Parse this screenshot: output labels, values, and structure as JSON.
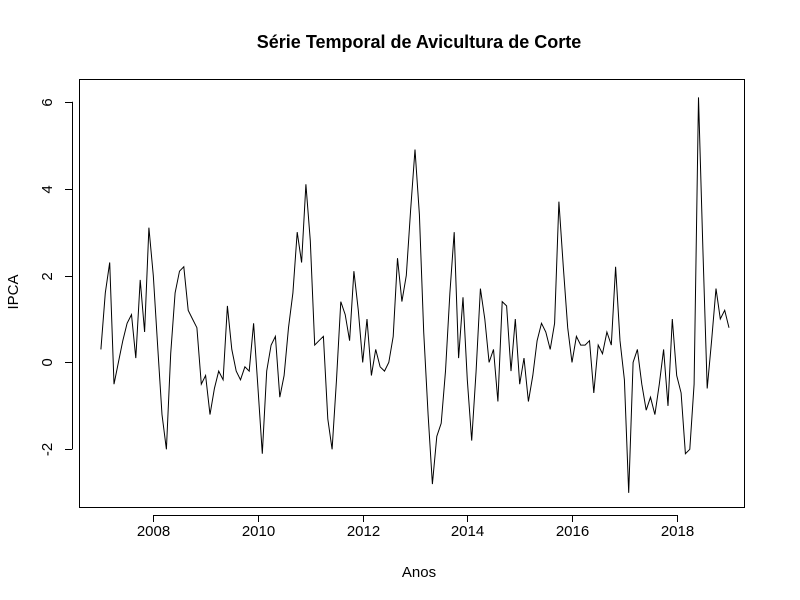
{
  "chart_data": {
    "type": "line",
    "title": "Série Temporal de Avicultura de Corte",
    "xlabel": "Anos",
    "ylabel": "IPCA",
    "xlim": [
      2006.6,
      2019.3
    ],
    "ylim": [
      -3.35,
      6.5
    ],
    "x_ticks": [
      2008,
      2010,
      2012,
      2014,
      2016,
      2018
    ],
    "y_ticks": [
      -2,
      0,
      2,
      4,
      6
    ],
    "x_tick_labels": [
      "2008",
      "2010",
      "2012",
      "2014",
      "2016",
      "2018"
    ],
    "y_tick_labels": [
      "-2",
      "0",
      "2",
      "4",
      "6"
    ],
    "grid": false,
    "x_start": 2007.0,
    "x_step": 0.0833,
    "series": [
      {
        "values": [
          0.3,
          1.6,
          2.3,
          -0.5,
          0.0,
          0.5,
          0.9,
          1.1,
          0.1,
          1.9,
          0.7,
          3.1,
          2.0,
          0.4,
          -1.2,
          -2.0,
          0.2,
          1.6,
          2.1,
          2.2,
          1.2,
          1.0,
          0.8,
          -0.5,
          -0.3,
          -1.2,
          -0.6,
          -0.2,
          -0.4,
          1.3,
          0.3,
          -0.2,
          -0.4,
          -0.1,
          -0.2,
          0.9,
          -0.6,
          -2.1,
          -0.2,
          0.4,
          0.6,
          -0.8,
          -0.3,
          0.8,
          1.6,
          3.0,
          2.3,
          4.1,
          2.8,
          0.4,
          0.5,
          0.6,
          -1.3,
          -2.0,
          -0.4,
          1.4,
          1.1,
          0.5,
          2.1,
          1.2,
          0.0,
          1.0,
          -0.3,
          0.3,
          -0.1,
          -0.2,
          0.0,
          0.6,
          2.4,
          1.4,
          2.0,
          3.5,
          4.9,
          3.4,
          0.7,
          -1.2,
          -2.8,
          -1.7,
          -1.4,
          -0.2,
          1.6,
          3.0,
          0.1,
          1.5,
          -0.4,
          -1.8,
          -0.2,
          1.7,
          1.0,
          0.0,
          0.3,
          -0.9,
          1.4,
          1.3,
          -0.2,
          1.0,
          -0.5,
          0.1,
          -0.9,
          -0.3,
          0.5,
          0.9,
          0.7,
          0.3,
          0.9,
          3.7,
          2.2,
          0.8,
          0.0,
          0.6,
          0.4,
          0.4,
          0.5,
          -0.7,
          0.4,
          0.2,
          0.7,
          0.4,
          2.2,
          0.5,
          -0.4,
          -3.0,
          0.0,
          0.3,
          -0.5,
          -1.1,
          -0.8,
          -1.2,
          -0.5,
          0.3,
          -1.0,
          1.0,
          -0.3,
          -0.7,
          -2.1,
          -2.0,
          -0.5,
          6.1,
          2.6,
          -0.6,
          0.5,
          1.7,
          1.0,
          1.2,
          0.8
        ],
        "color": "#000000"
      }
    ]
  }
}
